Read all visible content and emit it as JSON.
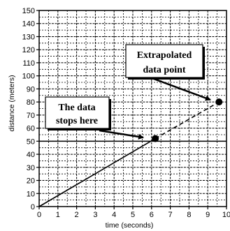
{
  "chart_data": {
    "type": "line",
    "title": "",
    "xlabel": "time (seconds)",
    "ylabel": "distance (meters)",
    "xlim": [
      0,
      10
    ],
    "ylim": [
      0,
      150
    ],
    "x_ticks": [
      "0",
      "1",
      "2",
      "3",
      "4",
      "5",
      "6",
      "7",
      "8",
      "9",
      "10"
    ],
    "y_ticks": [
      "0",
      "10",
      "20",
      "30",
      "40",
      "50",
      "60",
      "70",
      "80",
      "90",
      "100",
      "110",
      "120",
      "130",
      "140",
      "150"
    ],
    "grid": true,
    "series": [
      {
        "style": "solid",
        "points": [
          [
            0,
            0
          ],
          [
            6.2,
            52
          ]
        ]
      },
      {
        "style": "dashed",
        "points": [
          [
            6.2,
            52
          ],
          [
            9.6,
            80
          ]
        ]
      }
    ],
    "markers": [
      [
        6.2,
        52
      ],
      [
        9.6,
        80
      ]
    ],
    "annotations": [
      {
        "lines": [
          "The data",
          "stops here"
        ],
        "target": [
          6.2,
          52
        ]
      },
      {
        "lines": [
          "Extrapolated",
          "data point"
        ],
        "target": [
          9.6,
          80
        ]
      }
    ]
  }
}
